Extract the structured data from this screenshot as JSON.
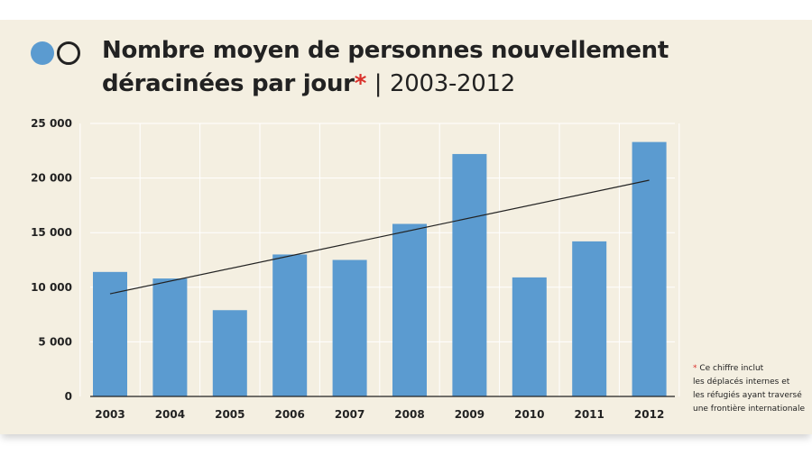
{
  "title": {
    "line1": "Nombre moyen de personnes nouvellement",
    "line2": "déracinées par jour",
    "asterisk": "*",
    "separator": "|",
    "period": "2003-2012"
  },
  "footnote": {
    "asterisk": "*",
    "lines": [
      "Ce chiffre inclut",
      "les déplacés internes et",
      "les réfugiés ayant traversé",
      "une frontière internationale"
    ]
  },
  "colors": {
    "background": "#f4efe1",
    "bar": "#5b9bd0",
    "trend": "#222222",
    "asterisk": "#d9312b"
  },
  "chart_data": {
    "type": "bar",
    "categories": [
      "2003",
      "2004",
      "2005",
      "2006",
      "2007",
      "2008",
      "2009",
      "2010",
      "2011",
      "2012"
    ],
    "values": [
      11400,
      10800,
      7900,
      13000,
      12500,
      15800,
      22200,
      10900,
      14200,
      23300
    ],
    "ylim": [
      0,
      25000
    ],
    "yticks": [
      0,
      5000,
      10000,
      15000,
      20000,
      25000
    ],
    "ytick_labels": [
      "0",
      "5 000",
      "10 000",
      "15 000",
      "20 000",
      "25 000"
    ],
    "trend_line": {
      "x": [
        "2003",
        "2012"
      ],
      "y": [
        9400,
        19800
      ]
    },
    "grid": true,
    "legend": "none"
  }
}
